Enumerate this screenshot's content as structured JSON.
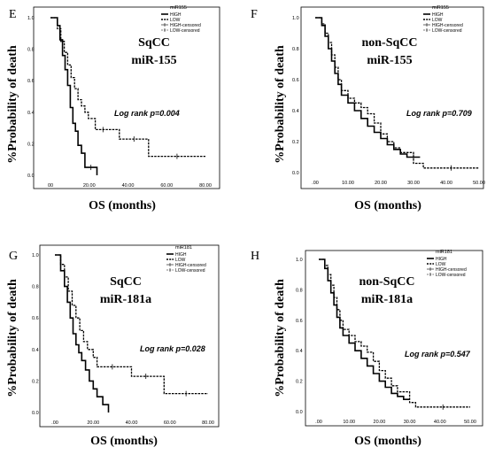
{
  "figure": {
    "ylabel": "%Probability of death",
    "xlabel": "OS (months)"
  },
  "chart_data": [
    {
      "type": "line",
      "letter": "E",
      "title": "SqCC",
      "subtitle": "miR-155",
      "legend_title": "miR155",
      "legend": [
        "HIGH",
        "LOW",
        "HIGH-censored",
        "LOW-censored"
      ],
      "annotation": "Log rank p=0.004",
      "ylabel": "%Probability of death",
      "xlabel": "OS (months)",
      "xlim": [
        0,
        90
      ],
      "ylim": [
        0,
        1
      ],
      "xticks": [
        "00",
        "20.00",
        "40.00",
        "60.00",
        "80.00"
      ],
      "yticks": [
        "0.0",
        "0.2",
        "0.4",
        "0.6",
        "0.8",
        "1.0"
      ],
      "legend_position": "top-right",
      "series": [
        {
          "name": "HIGH",
          "style": "solid",
          "x": [
            0,
            4,
            5.5,
            7,
            8.5,
            10,
            11.5,
            13,
            14.5,
            16,
            18,
            20,
            27,
            27
          ],
          "y": [
            1.0,
            0.95,
            0.86,
            0.76,
            0.67,
            0.57,
            0.43,
            0.33,
            0.28,
            0.19,
            0.14,
            0.05,
            0.05,
            0.0
          ]
        },
        {
          "name": "LOW",
          "style": "dashed",
          "x": [
            0,
            4,
            6,
            8,
            10,
            12,
            14,
            16,
            18,
            20,
            22,
            26,
            35,
            40,
            57,
            57,
            90
          ],
          "y": [
            1.0,
            0.93,
            0.85,
            0.78,
            0.7,
            0.62,
            0.55,
            0.48,
            0.44,
            0.4,
            0.36,
            0.29,
            0.29,
            0.23,
            0.23,
            0.12,
            0.12
          ]
        }
      ]
    },
    {
      "type": "line",
      "letter": "F",
      "title": "non-SqCC",
      "subtitle": "miR-155",
      "legend_title": "miR155",
      "legend": [
        "HIGH",
        "LOW",
        "HIGH-censored",
        "LOW-censored"
      ],
      "annotation": "Log rank p=0.709",
      "ylabel": "%Probability of death",
      "xlabel": "OS (months)",
      "xlim": [
        0,
        50
      ],
      "ylim": [
        0,
        1
      ],
      "xticks": [
        ".00",
        "10.00",
        "20.00",
        "30.00",
        "40.00",
        "50.00"
      ],
      "yticks": [
        "0.0",
        "0.2",
        "0.4",
        "0.6",
        "0.8",
        "1.0"
      ],
      "legend_position": "top-right",
      "series": [
        {
          "name": "HIGH",
          "style": "solid",
          "x": [
            0,
            2,
            3,
            4,
            5,
            6,
            7,
            8,
            10,
            12,
            14,
            16,
            18,
            20,
            22,
            24,
            26,
            28,
            32
          ],
          "y": [
            1.0,
            0.95,
            0.88,
            0.8,
            0.72,
            0.64,
            0.57,
            0.5,
            0.45,
            0.4,
            0.35,
            0.3,
            0.26,
            0.22,
            0.18,
            0.15,
            0.12,
            0.1,
            0.1
          ]
        },
        {
          "name": "LOW",
          "style": "dashed",
          "x": [
            0,
            2,
            3,
            4,
            5,
            6,
            7,
            8,
            10,
            12,
            14,
            16,
            18,
            20,
            22,
            24,
            26,
            30,
            33,
            50
          ],
          "y": [
            1.0,
            0.96,
            0.9,
            0.84,
            0.76,
            0.68,
            0.6,
            0.53,
            0.48,
            0.45,
            0.42,
            0.38,
            0.32,
            0.25,
            0.2,
            0.16,
            0.13,
            0.06,
            0.03,
            0.03
          ]
        }
      ]
    },
    {
      "type": "line",
      "letter": "G",
      "title": "SqCC",
      "subtitle": "miR-181a",
      "legend_title": "miR181",
      "legend": [
        "HIGH",
        "LOW",
        "HIGH-censored",
        "LOW-censored"
      ],
      "annotation": "Log rank p=0.028",
      "ylabel": "%Probability of death",
      "xlabel": "OS (months)",
      "xlim": [
        0,
        80
      ],
      "ylim": [
        0,
        1
      ],
      "xticks": [
        ".00",
        "20.00",
        "40.00",
        "60.00",
        "80.00"
      ],
      "yticks": [
        "0.0",
        "0.2",
        "0.4",
        "0.6",
        "0.8",
        "1.0"
      ],
      "legend_position": "top-right",
      "series": [
        {
          "name": "HIGH",
          "style": "solid",
          "x": [
            0,
            3,
            5,
            6.5,
            8,
            9.5,
            11,
            12.5,
            14,
            16,
            18,
            20,
            22,
            25,
            28,
            28
          ],
          "y": [
            1.0,
            0.9,
            0.8,
            0.7,
            0.6,
            0.5,
            0.43,
            0.38,
            0.33,
            0.27,
            0.2,
            0.15,
            0.1,
            0.05,
            0.05,
            0.0
          ]
        },
        {
          "name": "LOW",
          "style": "dashed",
          "x": [
            0,
            3,
            5,
            7,
            9,
            11,
            13,
            15,
            17,
            20,
            22,
            38,
            40,
            55,
            57,
            80
          ],
          "y": [
            1.0,
            0.94,
            0.86,
            0.77,
            0.68,
            0.6,
            0.52,
            0.45,
            0.4,
            0.35,
            0.29,
            0.29,
            0.23,
            0.23,
            0.12,
            0.12
          ]
        }
      ]
    },
    {
      "type": "line",
      "letter": "H",
      "title": "non-SqCC",
      "subtitle": "miR-181a",
      "legend_title": "miR181",
      "legend": [
        "HIGH",
        "LOW",
        "HIGH-censored",
        "LOW-censored"
      ],
      "annotation": "Log rank p=0.547",
      "ylabel": "%Probability of death",
      "xlabel": "OS (months)",
      "xlim": [
        0,
        50
      ],
      "ylim": [
        0,
        1
      ],
      "xticks": [
        ".00",
        "10.00",
        "20.00",
        "30.00",
        "40.00",
        "50.00"
      ],
      "yticks": [
        "0.0",
        "0.2",
        "0.4",
        "0.6",
        "0.8",
        "1.0"
      ],
      "legend_position": "top-right",
      "series": [
        {
          "name": "HIGH",
          "style": "solid",
          "x": [
            0,
            2,
            3,
            4,
            5,
            6,
            7,
            8,
            10,
            12,
            14,
            16,
            18,
            20,
            22,
            24,
            26,
            28,
            30
          ],
          "y": [
            1.0,
            0.94,
            0.86,
            0.78,
            0.7,
            0.62,
            0.55,
            0.5,
            0.45,
            0.4,
            0.35,
            0.3,
            0.25,
            0.2,
            0.16,
            0.12,
            0.1,
            0.08,
            0.08
          ]
        },
        {
          "name": "LOW",
          "style": "dashed",
          "x": [
            0,
            2,
            3,
            4,
            5,
            6,
            7,
            8,
            10,
            12,
            14,
            16,
            18,
            20,
            22,
            24,
            26,
            30,
            32,
            50
          ],
          "y": [
            1.0,
            0.96,
            0.9,
            0.83,
            0.75,
            0.67,
            0.6,
            0.54,
            0.5,
            0.46,
            0.43,
            0.39,
            0.33,
            0.27,
            0.22,
            0.17,
            0.13,
            0.06,
            0.03,
            0.03
          ]
        }
      ]
    }
  ]
}
